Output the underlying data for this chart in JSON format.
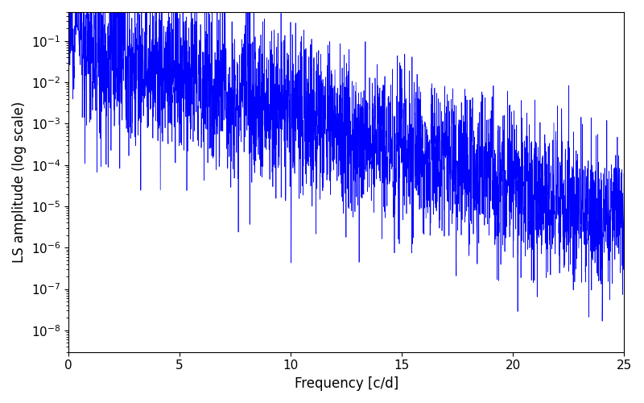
{
  "xlabel": "Frequency [c/d]",
  "ylabel": "LS amplitude (log scale)",
  "xlim": [
    0,
    25
  ],
  "ylim": [
    3e-09,
    0.5
  ],
  "line_color": "#0000ff",
  "background_color": "#ffffff",
  "figsize": [
    8.0,
    5.0
  ],
  "dpi": 100,
  "seed": 12345,
  "n_points": 4000,
  "freq_max": 25.0
}
